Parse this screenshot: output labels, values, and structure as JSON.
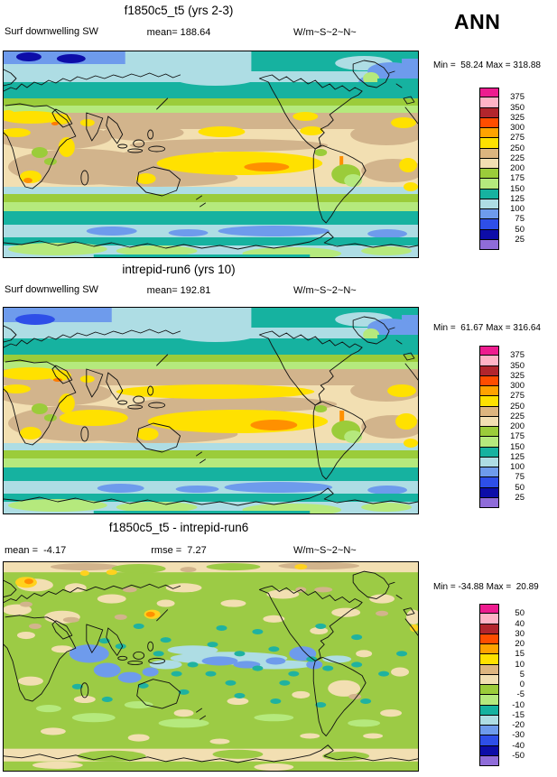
{
  "figure": {
    "season": "ANN",
    "panels": [
      {
        "title": "f1850c5_t5 (yrs 2-3)",
        "variable": "Surf downwelling SW",
        "mean": "mean= 188.64",
        "units": "W/m~S~2~N~",
        "minmax": "Min =  58.24 Max = 318.88"
      },
      {
        "title": "intrepid-run6 (yrs 10)",
        "variable": "Surf downwelling SW",
        "mean": "mean= 192.81",
        "units": "W/m~S~2~N~",
        "minmax": "Min =  61.67 Max = 316.64"
      },
      {
        "title": "f1850c5_t5 - intrepid-run6",
        "mean": "mean =  -4.17",
        "rmse": "rmse =  7.27",
        "units": "W/m~S~2~N~",
        "minmax": "Min = -34.88 Max =  20.89"
      }
    ]
  },
  "palette_top_to_bottom": [
    "#ED1C8F",
    "#FFB3C6",
    "#B2252D",
    "#FF4D00",
    "#FFA300",
    "#FFE100",
    "#DDB57F",
    "#F2DFB2",
    "#9BCC3A",
    "#B5E97D",
    "#16B2A0",
    "#AEDDE4",
    "#6E9BEC",
    "#2E4FE8",
    "#0D0DA8",
    "#8F6CD9"
  ],
  "colorbars": [
    {
      "labels": [
        "375",
        "350",
        "325",
        "300",
        "275",
        "250",
        "225",
        "200",
        "175",
        "150",
        "125",
        "100",
        "75",
        "50",
        "25"
      ]
    },
    {
      "labels": [
        "375",
        "350",
        "325",
        "300",
        "275",
        "250",
        "225",
        "200",
        "175",
        "150",
        "125",
        "100",
        "75",
        "50",
        "25"
      ]
    },
    {
      "labels": [
        "50",
        "40",
        "30",
        "20",
        "15",
        "10",
        "5",
        "0",
        "-5",
        "-10",
        "-15",
        "-20",
        "-30",
        "-40",
        "-50"
      ]
    }
  ],
  "chart_data": [
    {
      "type": "heatmap",
      "subtype": "global lat-lon filled contour map (0-360E)",
      "title": "f1850c5_t5 (yrs 2-3)",
      "variable": "Surf downwelling SW",
      "units": "W/m~S~2~N~",
      "season": "ANN",
      "stats": {
        "mean": 188.64,
        "min": 58.24,
        "max": 318.88
      },
      "contour_levels": [
        25,
        50,
        75,
        100,
        125,
        150,
        175,
        200,
        225,
        250,
        275,
        300,
        325,
        350,
        375
      ],
      "palette_top_to_bottom": [
        "#ED1C8F",
        "#FFB3C6",
        "#B2252D",
        "#FF4D00",
        "#FFA300",
        "#FFE100",
        "#DDB57F",
        "#F2DFB2",
        "#9BCC3A",
        "#B5E97D",
        "#16B2A0",
        "#AEDDE4",
        "#6E9BEC",
        "#2E4FE8",
        "#0D0DA8",
        "#8F6CD9"
      ],
      "legend_position": "right"
    },
    {
      "type": "heatmap",
      "subtype": "global lat-lon filled contour map (0-360E)",
      "title": "intrepid-run6 (yrs 10)",
      "variable": "Surf downwelling SW",
      "units": "W/m~S~2~N~",
      "season": "ANN",
      "stats": {
        "mean": 192.81,
        "min": 61.67,
        "max": 316.64
      },
      "contour_levels": [
        25,
        50,
        75,
        100,
        125,
        150,
        175,
        200,
        225,
        250,
        275,
        300,
        325,
        350,
        375
      ],
      "palette_top_to_bottom": [
        "#ED1C8F",
        "#FFB3C6",
        "#B2252D",
        "#FF4D00",
        "#FFA300",
        "#FFE100",
        "#DDB57F",
        "#F2DFB2",
        "#9BCC3A",
        "#B5E97D",
        "#16B2A0",
        "#AEDDE4",
        "#6E9BEC",
        "#2E4FE8",
        "#0D0DA8",
        "#8F6CD9"
      ],
      "legend_position": "right"
    },
    {
      "type": "heatmap",
      "subtype": "global lat-lon filled contour difference map (0-360E)",
      "title": "f1850c5_t5 - intrepid-run6",
      "units": "W/m~S~2~N~",
      "season": "ANN",
      "stats": {
        "mean": -4.17,
        "rmse": 7.27,
        "min": -34.88,
        "max": 20.89
      },
      "contour_levels": [
        -50,
        -40,
        -30,
        -20,
        -15,
        -10,
        -5,
        0,
        5,
        10,
        15,
        20,
        30,
        40,
        50
      ],
      "palette_top_to_bottom": [
        "#ED1C8F",
        "#FFB3C6",
        "#B2252D",
        "#FF4D00",
        "#FFA300",
        "#FFE100",
        "#DDB57F",
        "#F2DFB2",
        "#9BCC3A",
        "#B5E97D",
        "#16B2A0",
        "#AEDDE4",
        "#6E9BEC",
        "#2E4FE8",
        "#0D0DA8",
        "#8F6CD9"
      ],
      "legend_position": "right"
    }
  ]
}
